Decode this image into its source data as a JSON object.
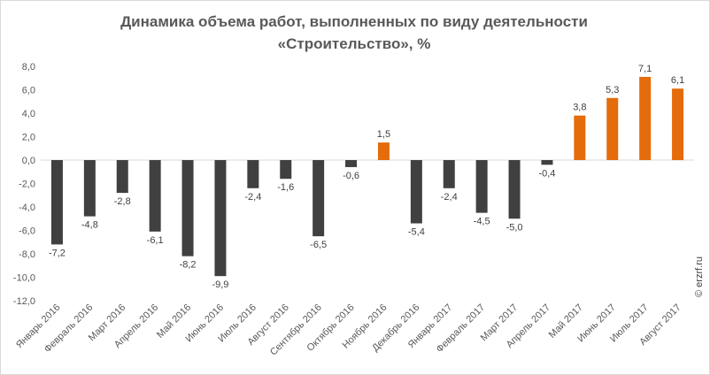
{
  "chart_data": {
    "type": "bar",
    "title_line1": "Динамика объема работ, выполненных по виду деятельности",
    "title_line2": "«Строительство», %",
    "categories": [
      "Январь 2016",
      "Февраль 2016",
      "Март 2016",
      "Апрель 2016",
      "Май 2016",
      "Июнь 2016",
      "Июль 2016",
      "Август 2016",
      "Сентябрь 2016",
      "Октябрь 2016",
      "Ноябрь 2016",
      "Декабрь 2016",
      "Январь 2017",
      "Февраль 2017",
      "Март 2017",
      "Апрель 2017",
      "Май 2017",
      "Июнь 2017",
      "Июль 2017",
      "Август 2017"
    ],
    "values": [
      -7.2,
      -4.8,
      -2.8,
      -6.1,
      -8.2,
      -9.9,
      -2.4,
      -1.6,
      -6.5,
      -0.6,
      1.5,
      -5.4,
      -2.4,
      -4.5,
      -5.0,
      -0.4,
      3.8,
      5.3,
      7.1,
      6.1
    ],
    "value_labels": [
      "-7,2",
      "-4,8",
      "-2,8",
      "-6,1",
      "-8,2",
      "-9,9",
      "-2,4",
      "-1,6",
      "-6,5",
      "-0,6",
      "1,5",
      "-5,4",
      "-2,4",
      "-4,5",
      "-5,0",
      "-0,4",
      "3,8",
      "5,3",
      "7,1",
      "6,1"
    ],
    "ylim": [
      -12,
      8
    ],
    "yticks": [
      8,
      6,
      4,
      2,
      0,
      -2,
      -4,
      -6,
      -8,
      -10,
      -12
    ],
    "ytick_labels": [
      "8,0",
      "6,0",
      "4,0",
      "2,0",
      "0,0",
      "-2,0",
      "-4,0",
      "-6,0",
      "-8,0",
      "-10,0",
      "-12,0"
    ],
    "grid": false,
    "colors": {
      "negative": "#404040",
      "positive": "#e46c0a",
      "axis": "#d9d9d9"
    }
  },
  "watermark": "© erzrf.ru"
}
